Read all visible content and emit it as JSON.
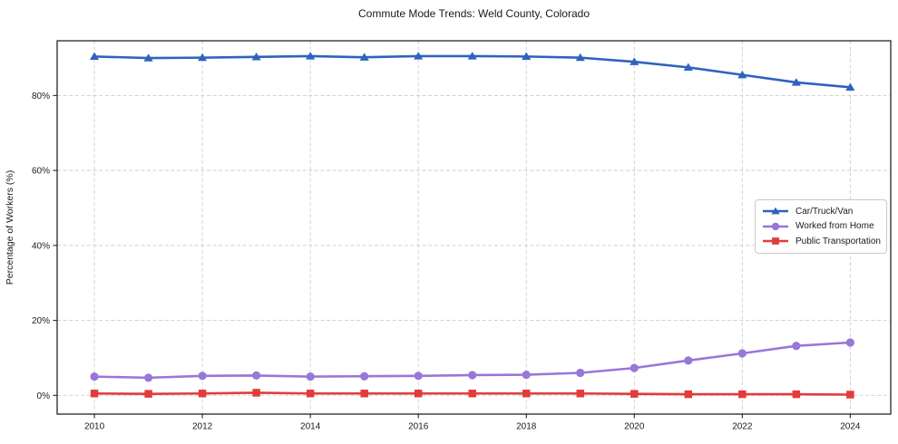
{
  "figure": {
    "title": "Commute Mode Trends: Weld County, Colorado"
  },
  "chart_data": {
    "type": "line",
    "title": "Commute Mode Trends: Weld County, Colorado",
    "xlabel": "",
    "ylabel": "Percentage of Workers (%)",
    "x": [
      2010,
      2011,
      2012,
      2013,
      2014,
      2015,
      2016,
      2017,
      2018,
      2019,
      2020,
      2021,
      2022,
      2023,
      2024
    ],
    "series": [
      {
        "name": "Car/Truck/Van",
        "marker": "triangle",
        "color": "#2e63be",
        "values": [
          90.4,
          90.0,
          90.1,
          90.3,
          90.5,
          90.2,
          90.5,
          90.5,
          90.4,
          90.1,
          89.0,
          87.5,
          85.5,
          83.5,
          82.2
        ]
      },
      {
        "name": "Worked from Home",
        "marker": "circle",
        "color": "#9877d9",
        "values": [
          5.0,
          4.7,
          5.2,
          5.3,
          5.0,
          5.1,
          5.2,
          5.4,
          5.5,
          6.0,
          7.3,
          9.3,
          11.2,
          13.2,
          14.1
        ]
      },
      {
        "name": "Public Transportation",
        "marker": "square",
        "color": "#e23b3c",
        "values": [
          0.5,
          0.4,
          0.5,
          0.7,
          0.5,
          0.5,
          0.5,
          0.5,
          0.5,
          0.5,
          0.4,
          0.3,
          0.3,
          0.3,
          0.2
        ]
      }
    ],
    "x_ticks": [
      2010,
      2012,
      2014,
      2016,
      2018,
      2020,
      2022,
      2024
    ],
    "x_tick_labels": [
      "2010",
      "2012",
      "2014",
      "2016",
      "2018",
      "2020",
      "2022",
      "2024"
    ],
    "y_ticks": [
      0,
      20,
      40,
      60,
      80
    ],
    "y_tick_labels": [
      "0%",
      "20%",
      "40%",
      "60%",
      "80%"
    ],
    "xlim": [
      2009.31,
      2024.75
    ],
    "ylim": [
      -5.0,
      94.6
    ],
    "grid": true,
    "grid_style": "dashed",
    "legend_position": "center right",
    "colors": {
      "grid": "#cdcdcd",
      "spine": "#262626",
      "text": "#1a1a1a",
      "background": "#ffffff"
    }
  }
}
